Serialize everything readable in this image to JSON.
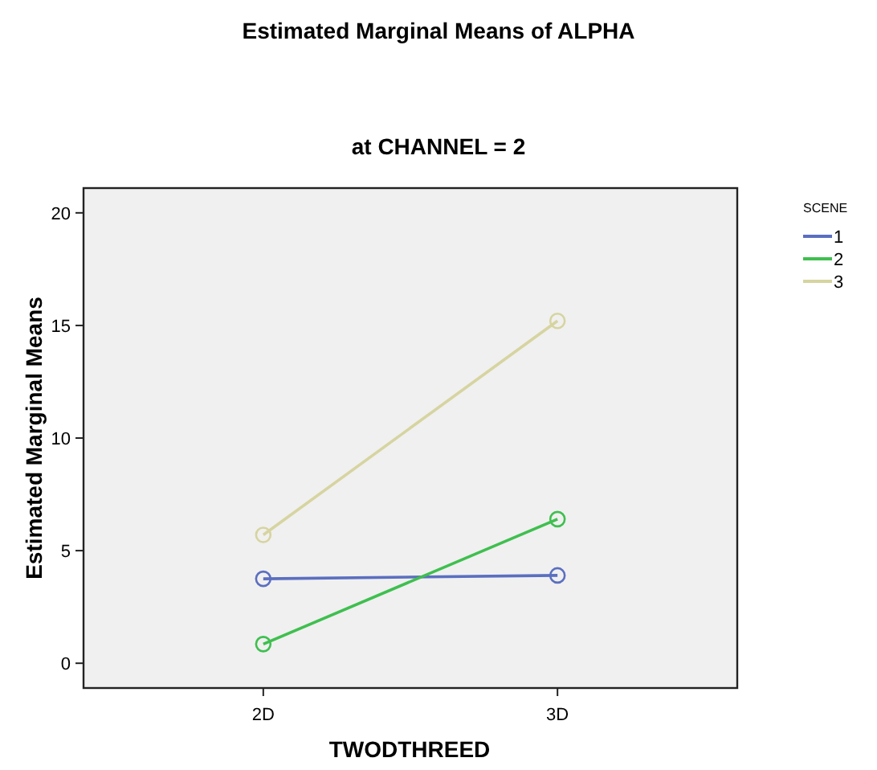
{
  "chart_data": {
    "type": "line",
    "title": "Estimated Marginal Means of ALPHA",
    "subtitle": "at CHANNEL = 2",
    "xlabel": "TWODTHREED",
    "ylabel": "Estimated Marginal Means",
    "legend_title": "SCENE",
    "categories": [
      "2D",
      "3D"
    ],
    "ylim": [
      -1.1,
      21.1
    ],
    "yticks": [
      0,
      5,
      10,
      15,
      20
    ],
    "grid": false,
    "legend": "top right",
    "marker": "circle",
    "series": [
      {
        "name": "1",
        "color": "#5b6fc0",
        "values": [
          3.75,
          3.9
        ]
      },
      {
        "name": "2",
        "color": "#3fbf4f",
        "values": [
          0.85,
          6.4
        ]
      },
      {
        "name": "3",
        "color": "#d6d4a0",
        "values": [
          5.7,
          15.2
        ]
      }
    ]
  }
}
